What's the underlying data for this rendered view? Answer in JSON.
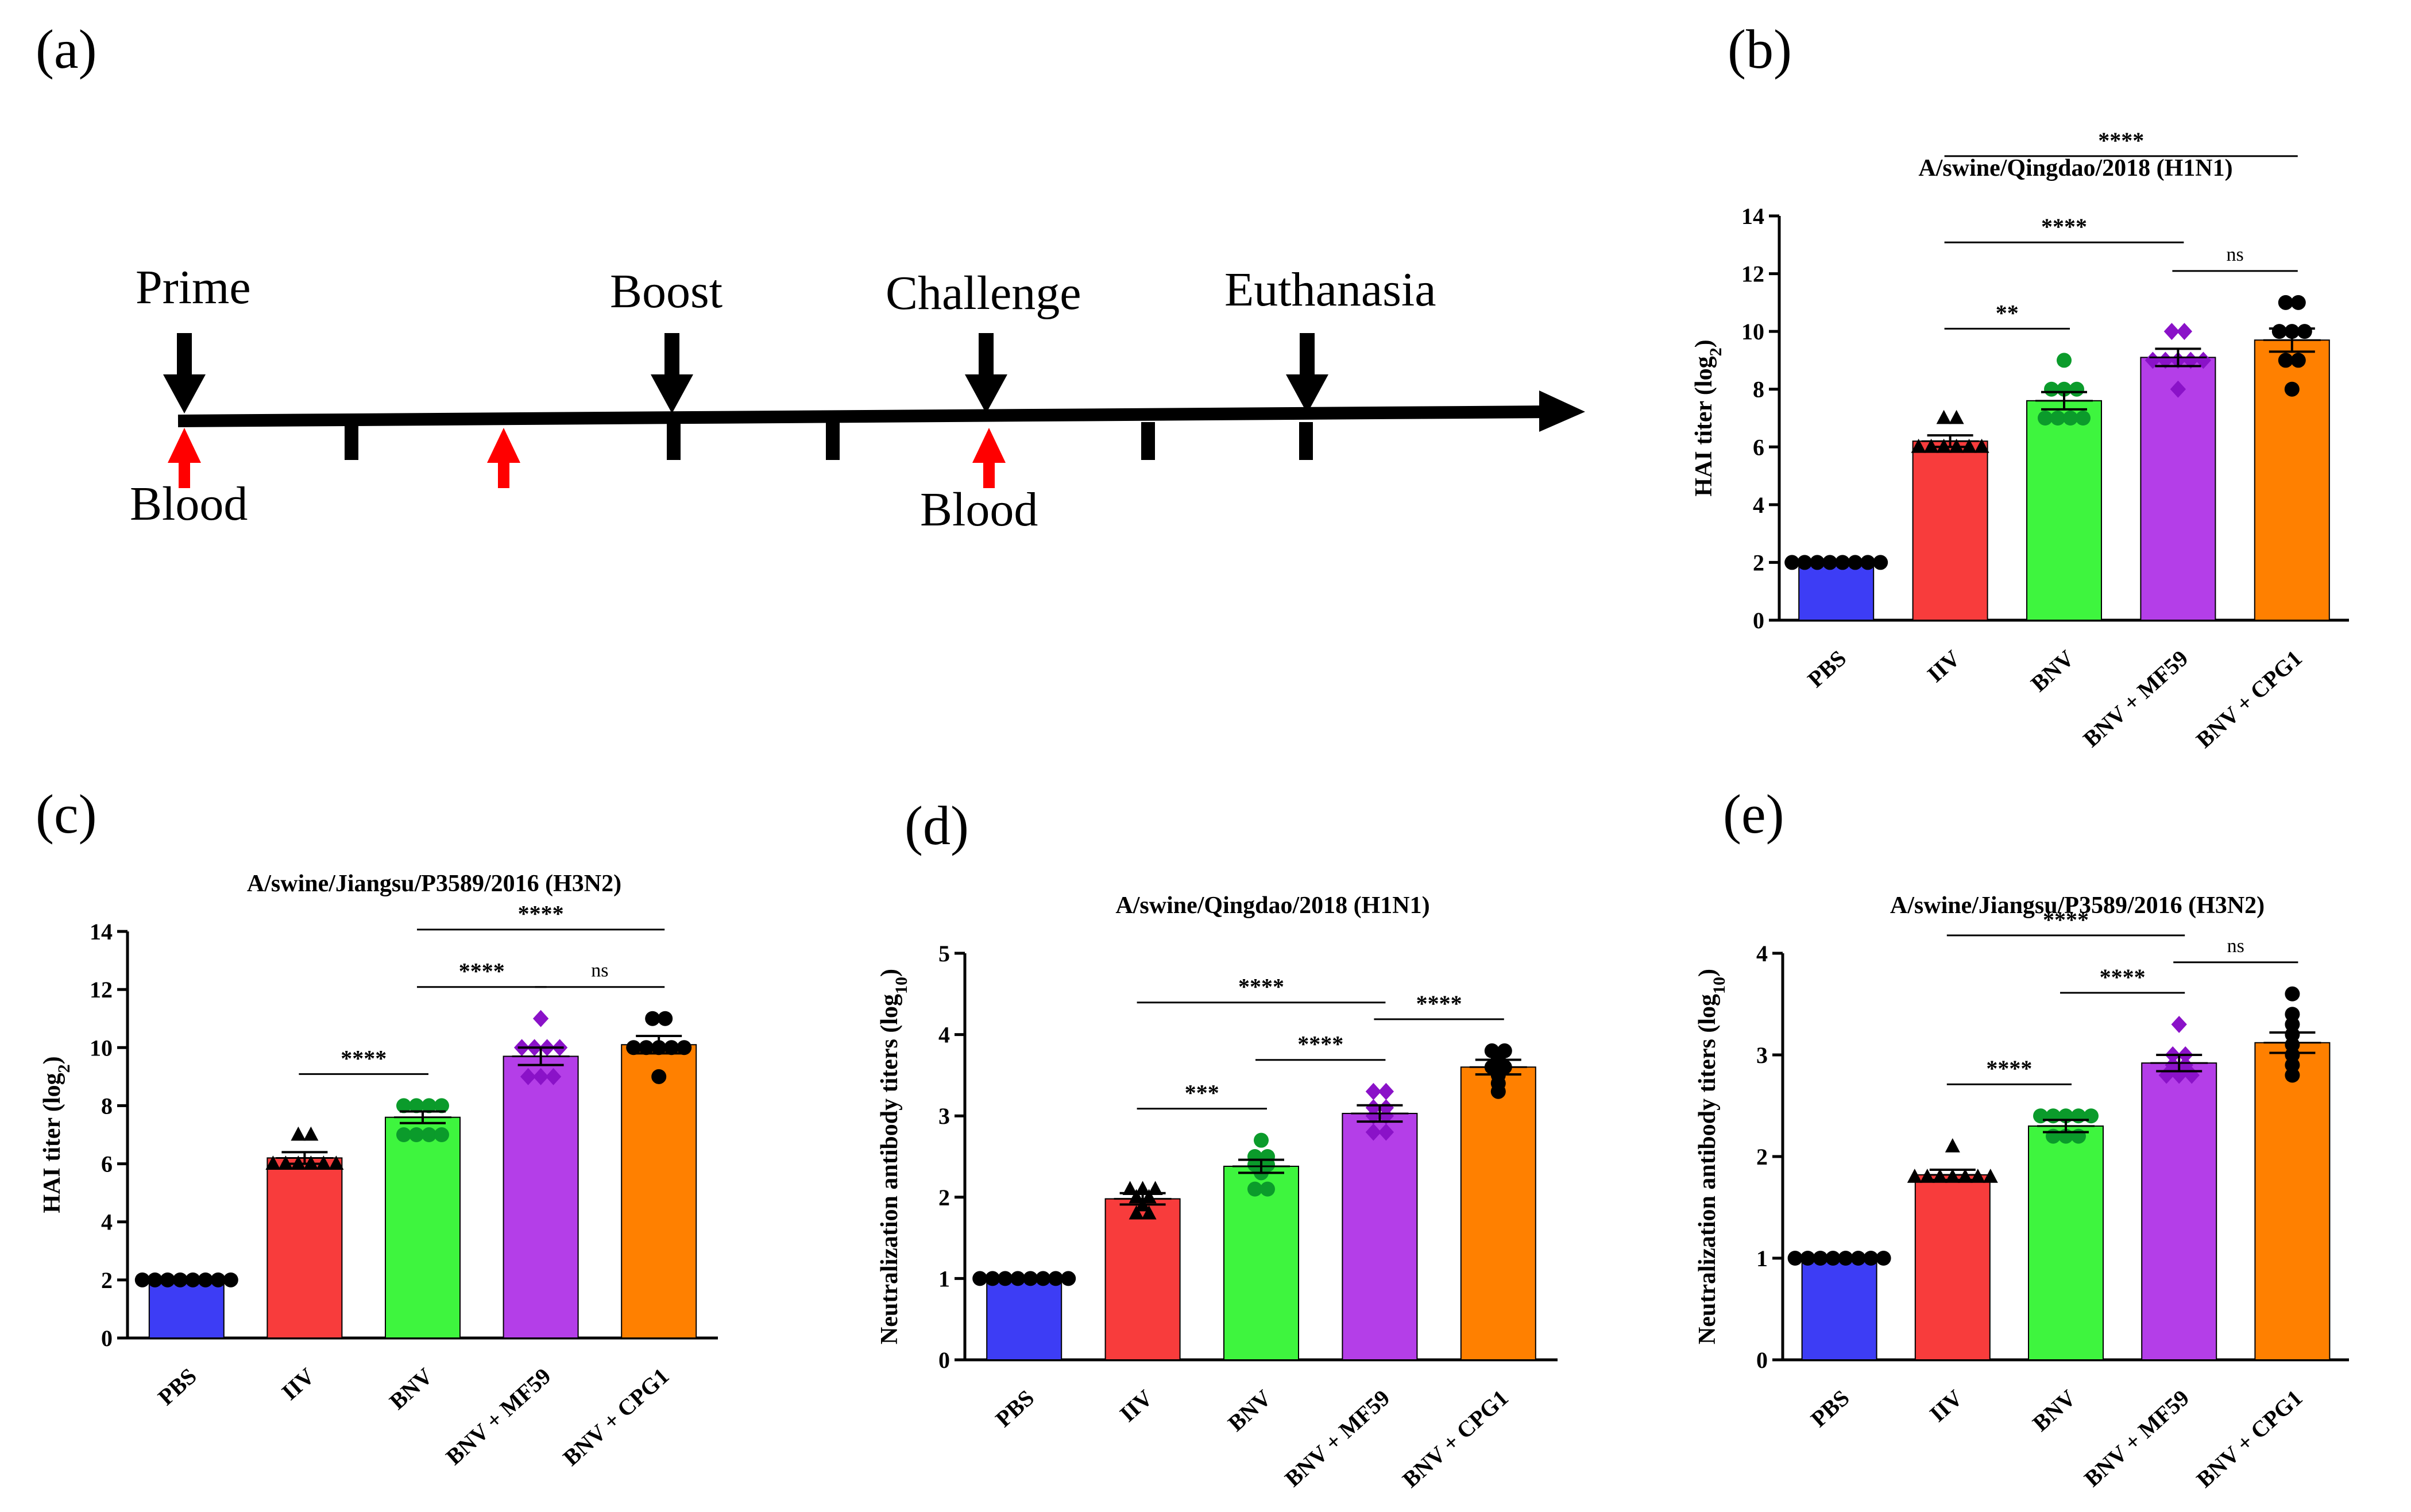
{
  "panel_labels": {
    "a": "(a)",
    "b": "(b)",
    "c": "(c)",
    "d": "(d)",
    "e": "(e)"
  },
  "timeline": {
    "events_above": [
      "Prime",
      "Boost",
      "Challenge",
      "Euthanasia"
    ],
    "events_below": [
      "Blood",
      "Blood"
    ],
    "arrow_color": "#000000",
    "blood_arrow_color": "#ff0000"
  },
  "colors": {
    "PBS": "#3d3df5",
    "IIV": "#f83c3c",
    "BNV": "#3ef53e",
    "BNV + MF59": "#b43ee8",
    "BNV + CPG1": "#ff8000"
  },
  "chart_data": [
    {
      "id": "b",
      "type": "bar",
      "title": "A/swine/Qingdao/2018 (H1N1)",
      "ylabel": "HAI titer (log",
      "ylabel_sub": "2",
      "ylim": [
        0,
        14
      ],
      "yticks": [
        0,
        2,
        4,
        6,
        8,
        10,
        12,
        14
      ],
      "categories": [
        "PBS",
        "IIV",
        "BNV",
        "BNV + MF59",
        "BNV + CPG1"
      ],
      "values": [
        2,
        6.2,
        7.6,
        9.1,
        9.7
      ],
      "sem": [
        0,
        0.2,
        0.3,
        0.3,
        0.4
      ],
      "markers": [
        "circle",
        "triangle",
        "circle",
        "diamond",
        "circle"
      ],
      "points": [
        [
          2,
          2,
          2,
          2,
          2,
          2,
          2,
          2
        ],
        [
          6,
          6,
          6,
          6,
          6,
          6,
          7,
          7
        ],
        [
          7,
          7,
          7,
          7,
          8,
          8,
          8,
          9
        ],
        [
          8,
          9,
          9,
          9,
          9,
          9,
          10,
          10
        ],
        [
          8,
          9,
          9,
          10,
          10,
          10,
          11,
          11
        ]
      ],
      "significance": [
        {
          "from": 1,
          "to": 2,
          "label": "**"
        },
        {
          "from": 1,
          "to": 3,
          "label": "****"
        },
        {
          "from": 3,
          "to": 4,
          "label": "ns"
        },
        {
          "from": 1,
          "to": 4,
          "label": "****"
        }
      ]
    },
    {
      "id": "c",
      "type": "bar",
      "title": "A/swine/Jiangsu/P3589/2016 (H3N2)",
      "ylabel": "HAI titer (log",
      "ylabel_sub": "2",
      "ylim": [
        0,
        14
      ],
      "yticks": [
        0,
        2,
        4,
        6,
        8,
        10,
        12,
        14
      ],
      "categories": [
        "PBS",
        "IIV",
        "BNV",
        "BNV + MF59",
        "BNV + CPG1"
      ],
      "values": [
        2,
        6.2,
        7.6,
        9.7,
        10.1
      ],
      "sem": [
        0,
        0.2,
        0.2,
        0.3,
        0.3
      ],
      "markers": [
        "circle",
        "triangle",
        "circle",
        "diamond",
        "circle"
      ],
      "points": [
        [
          2,
          2,
          2,
          2,
          2,
          2,
          2,
          2
        ],
        [
          6,
          6,
          6,
          6,
          6,
          6,
          7,
          7
        ],
        [
          7,
          7,
          7,
          7,
          8,
          8,
          8,
          8
        ],
        [
          9,
          9,
          9,
          10,
          10,
          10,
          10,
          11
        ],
        [
          9,
          10,
          10,
          10,
          10,
          10,
          11,
          11
        ]
      ],
      "significance": [
        {
          "from": 1,
          "to": 2,
          "label": "****"
        },
        {
          "from": 2,
          "to": 3,
          "label": "****"
        },
        {
          "from": 3,
          "to": 4,
          "label": "ns"
        },
        {
          "from": 2,
          "to": 4,
          "label": "****"
        }
      ]
    },
    {
      "id": "d",
      "type": "bar",
      "title": "A/swine/Qingdao/2018 (H1N1)",
      "ylabel": "Neutralization antibody titers (log",
      "ylabel_sub": "10",
      "ylim": [
        0,
        5
      ],
      "yticks": [
        0,
        1,
        2,
        3,
        4,
        5
      ],
      "categories": [
        "PBS",
        "IIV",
        "BNV",
        "BNV + MF59",
        "BNV + CPG1"
      ],
      "values": [
        1,
        1.98,
        2.38,
        3.03,
        3.6
      ],
      "sem": [
        0,
        0.07,
        0.08,
        0.1,
        0.09
      ],
      "markers": [
        "circle",
        "triangle",
        "circle",
        "diamond",
        "circle"
      ],
      "points": [
        [
          1,
          1,
          1,
          1,
          1,
          1,
          1,
          1
        ],
        [
          1.8,
          1.8,
          1.9,
          2,
          2,
          2.1,
          2.1,
          2.1
        ],
        [
          2.1,
          2.1,
          2.3,
          2.4,
          2.4,
          2.5,
          2.5,
          2.7
        ],
        [
          2.8,
          2.8,
          3,
          3,
          3.1,
          3.1,
          3.3,
          3.3
        ],
        [
          3.3,
          3.4,
          3.5,
          3.6,
          3.6,
          3.7,
          3.8,
          3.8
        ]
      ],
      "significance": [
        {
          "from": 1,
          "to": 2,
          "label": "***"
        },
        {
          "from": 2,
          "to": 3,
          "label": "****"
        },
        {
          "from": 1,
          "to": 3,
          "label": "****"
        },
        {
          "from": 3,
          "to": 4,
          "label": "****"
        }
      ]
    },
    {
      "id": "e",
      "type": "bar",
      "title": "A/swine/Jiangsu/P3589/2016 (H3N2)",
      "ylabel": "Neutralization antibody titers (log",
      "ylabel_sub": "10",
      "ylim": [
        0,
        4
      ],
      "yticks": [
        0,
        1,
        2,
        3,
        4
      ],
      "categories": [
        "PBS",
        "IIV",
        "BNV",
        "BNV + MF59",
        "BNV + CPG1"
      ],
      "values": [
        1,
        1.82,
        2.3,
        2.92,
        3.12
      ],
      "sem": [
        0,
        0.05,
        0.06,
        0.08,
        0.1
      ],
      "markers": [
        "circle",
        "triangle",
        "circle",
        "diamond",
        "circle"
      ],
      "points": [
        [
          1,
          1,
          1,
          1,
          1,
          1,
          1,
          1
        ],
        [
          1.8,
          1.8,
          1.8,
          1.8,
          1.8,
          1.8,
          1.8,
          2.1
        ],
        [
          2.2,
          2.2,
          2.2,
          2.4,
          2.4,
          2.4,
          2.4,
          2.4
        ],
        [
          2.8,
          2.8,
          2.8,
          2.9,
          2.9,
          3,
          3,
          3.3
        ],
        [
          2.8,
          2.9,
          3,
          3.1,
          3.2,
          3.3,
          3.4,
          3.6
        ]
      ],
      "significance": [
        {
          "from": 1,
          "to": 2,
          "label": "****"
        },
        {
          "from": 2,
          "to": 3,
          "label": "****"
        },
        {
          "from": 3,
          "to": 4,
          "label": "ns"
        },
        {
          "from": 1,
          "to": 3,
          "label": "****"
        }
      ]
    }
  ]
}
